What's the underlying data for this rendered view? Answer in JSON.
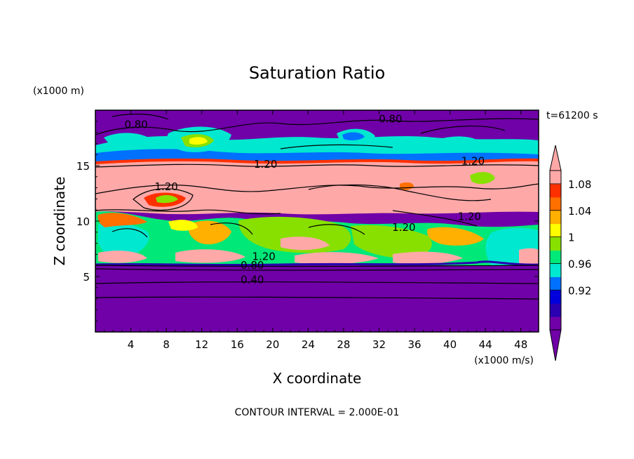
{
  "chart_data": {
    "type": "heatmap",
    "title": "Saturation Ratio",
    "xlabel": "X coordinate",
    "ylabel": "Z coordinate",
    "x_unit": "(x1000 m/s)",
    "y_unit": "(x1000 m)",
    "time_label": "t=61200 s",
    "footer": "CONTOUR INTERVAL = 2.000E-01",
    "xlim": [
      0,
      50
    ],
    "ylim": [
      0,
      20
    ],
    "x_ticks": [
      4,
      8,
      12,
      16,
      20,
      24,
      28,
      32,
      36,
      40,
      44,
      48
    ],
    "y_ticks": [
      5,
      10,
      15
    ],
    "colorbar": {
      "labels": [
        "1.08",
        "1.04",
        "1",
        "0.96",
        "0.92"
      ],
      "colors": [
        "#7000a8",
        "#2a00b0",
        "#0000dc",
        "#0070ff",
        "#00e8d0",
        "#00e878",
        "#88e000",
        "#ffff00",
        "#ffb000",
        "#ff7000",
        "#ff3000",
        "#ffa8a8"
      ]
    },
    "contour_labels": [
      {
        "text": "0.80",
        "x": 4.6,
        "y": 18.4
      },
      {
        "text": "0.80",
        "x": 33.3,
        "y": 18.9
      },
      {
        "text": "1.20",
        "x": 19.2,
        "y": 14.8
      },
      {
        "text": "1.20",
        "x": 42.6,
        "y": 15.1
      },
      {
        "text": "1.20",
        "x": 8.0,
        "y": 12.8
      },
      {
        "text": "1.20",
        "x": 34.8,
        "y": 9.1
      },
      {
        "text": "1.20",
        "x": 42.2,
        "y": 10.1
      },
      {
        "text": "1.20",
        "x": 19.0,
        "y": 6.5
      },
      {
        "text": "0.80",
        "x": 17.7,
        "y": 5.7
      },
      {
        "text": "0.40",
        "x": 17.7,
        "y": 4.4
      }
    ]
  }
}
